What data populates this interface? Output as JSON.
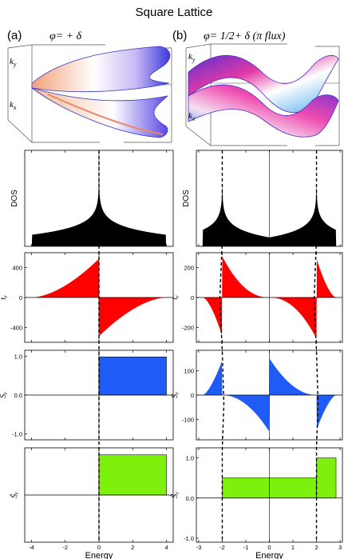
{
  "figure": {
    "title": "Square Lattice",
    "panel_a": {
      "label": "(a)",
      "phi_text": "φ= + δ"
    },
    "panel_b": {
      "label": "(b)",
      "phi_text": "φ= 1/2+ δ (π flux)"
    }
  },
  "surfaces": {
    "axis_ky": "k",
    "axis_ky_sub": "y",
    "axis_kx": "k",
    "axis_kx_sub": "x"
  },
  "chart_data": [
    {
      "id": "a-dos",
      "type": "area",
      "ylabel": "DOS",
      "xlim": [
        -4.4,
        4.4
      ],
      "ylim": [
        0,
        1
      ],
      "curve": "dos_square",
      "fill": "#000000",
      "dashed_x": [
        0
      ]
    },
    {
      "id": "a-tr",
      "type": "area",
      "ylabel": "t",
      "ylabel_sub": "r",
      "xlim": [
        -4.4,
        4.4
      ],
      "ylim": [
        -600,
        600
      ],
      "yticks": [
        400,
        0,
        -400
      ],
      "curve": "tr_square",
      "amplitude": 520,
      "fill": "#ff0000",
      "dashed_x": [
        0
      ]
    },
    {
      "id": "a-sr",
      "type": "area",
      "ylabel": "S",
      "ylabel_sub": "r",
      "xlim": [
        -4.4,
        4.4
      ],
      "ylim": [
        -1.15,
        1.15
      ],
      "yticks": [
        1.0,
        0.0,
        -1.0
      ],
      "ytick_labels": [
        "1.0",
        "0.0",
        "-1.0"
      ],
      "step": [
        {
          "x0": 0,
          "x1": 4,
          "y": 0.98
        }
      ],
      "fill": "#1f5cf7",
      "dashed_x": [
        0
      ]
    },
    {
      "id": "a-sr-tilde",
      "type": "area",
      "ylabel": "S̃",
      "ylabel_sub": "r",
      "xlim": [
        -4.4,
        4.4
      ],
      "ylim": [
        -1.15,
        1.15
      ],
      "xticks": [
        -4,
        -2,
        0,
        2,
        4
      ],
      "xlabel": "Energy",
      "step": [
        {
          "x0": 0,
          "x1": 4,
          "y": 0.98
        }
      ],
      "fill": "#7df00c",
      "dashed_x": [
        0
      ]
    },
    {
      "id": "b-dos",
      "type": "area",
      "ylabel": "DOS",
      "xlim": [
        -3.1,
        3.1
      ],
      "ylim": [
        0,
        1
      ],
      "curve": "dos_pi",
      "fill": "#000000",
      "dashed_x": [
        -2,
        2
      ]
    },
    {
      "id": "b-tr",
      "type": "area",
      "ylabel": "t",
      "ylabel_sub": "r",
      "xlim": [
        -3.1,
        3.1
      ],
      "ylim": [
        -300,
        300
      ],
      "yticks": [
        200,
        0,
        -200
      ],
      "curve": "tr_pi",
      "amplitude": 290,
      "fill": "#ff0000",
      "dashed_x": [
        -2,
        2
      ]
    },
    {
      "id": "b-sr",
      "type": "area",
      "ylabel": "S",
      "ylabel_sub": "r",
      "xlim": [
        -3.1,
        3.1
      ],
      "ylim": [
        -185,
        185
      ],
      "yticks": [
        100,
        0,
        -100
      ],
      "curve": "sr_pi",
      "amplitude": 160,
      "fill": "#1f5cf7",
      "dashed_x": [
        -2,
        2
      ]
    },
    {
      "id": "b-sr-tilde",
      "type": "area",
      "ylabel": "S̃",
      "ylabel_sub": "r",
      "xlim": [
        -3.1,
        3.1
      ],
      "ylim": [
        -1.1,
        1.25
      ],
      "yticks": [
        1.0,
        0.0,
        -1.0
      ],
      "ytick_labels": [
        "1.0",
        "0.0",
        "-1.0"
      ],
      "xticks": [
        -3,
        -2,
        -1,
        0,
        1,
        2,
        3
      ],
      "xlabel": "Energy",
      "step": [
        {
          "x0": -2,
          "x1": 2,
          "y": 0.5
        },
        {
          "x0": 2,
          "x1": 2.83,
          "y": 1.0
        }
      ],
      "fill": "#7df00c",
      "dashed_x": [
        -2,
        2
      ]
    }
  ]
}
